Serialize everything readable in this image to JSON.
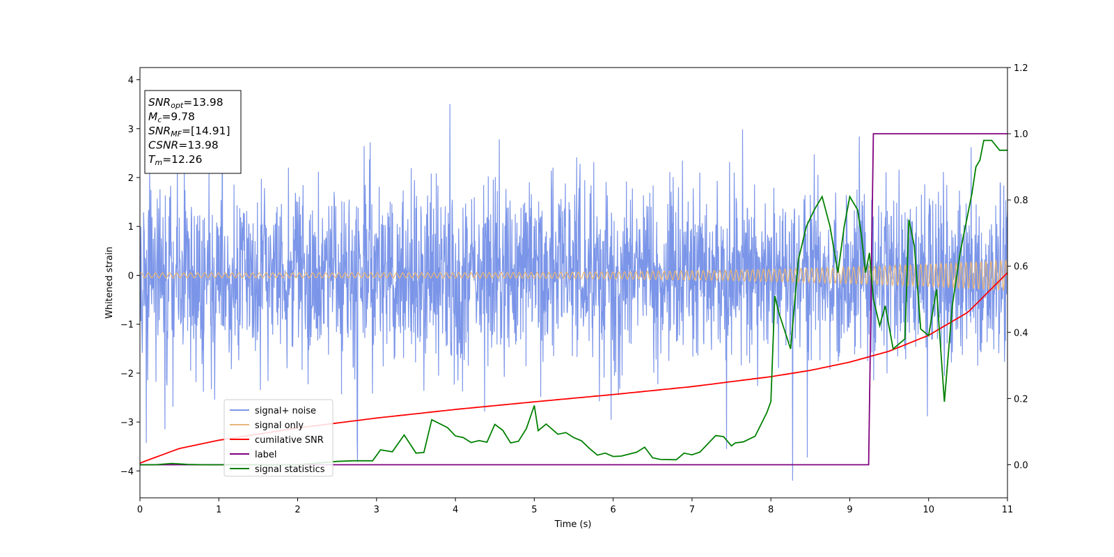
{
  "chart_data": {
    "type": "line",
    "xlabel": "Time (s)",
    "ylabel": "Whitened strain",
    "xlim": [
      0,
      11
    ],
    "ylim_left": [
      -4.55,
      4.25
    ],
    "ylim_right": [
      -0.1,
      1.2
    ],
    "x_ticks": [
      "0",
      "1",
      "2",
      "3",
      "4",
      "5",
      "6",
      "7",
      "8",
      "9",
      "10",
      "11"
    ],
    "y_left_ticks": [
      "4",
      "3",
      "2",
      "1",
      "0",
      "−1",
      "−2",
      "−3",
      "−4"
    ],
    "y_right_ticks": [
      "1.2",
      "1.0",
      "0.8",
      "0.6",
      "0.4",
      "0.2",
      "0.0"
    ],
    "grid": false,
    "legend_position": "lower-left",
    "annotation": [
      {
        "main": "SNR",
        "sub": "opt",
        "rest": "=13.98"
      },
      {
        "main": "M",
        "sub": "c",
        "rest": "=9.78"
      },
      {
        "main": "SNR",
        "sub": "MF",
        "rest": "=[14.91]"
      },
      {
        "main": "CSNR",
        "sub": "",
        "rest": "=13.98"
      },
      {
        "main": "T",
        "sub": "m",
        "rest": "=12.26"
      }
    ],
    "series": [
      {
        "name": "signal+ noise",
        "axis": "left",
        "color": "#7b95e8",
        "description": "dense whitened noise, std ~0.9, spikes to about +3.8 and -4.2",
        "noise_std": 0.9
      },
      {
        "name": "signal only",
        "axis": "left",
        "color": "#e8b67a",
        "description": "chirp oscillation",
        "amplitude_start": 0.05,
        "amplitude_end": 0.32
      },
      {
        "name": "cumilative SNR",
        "axis": "right",
        "color": "#ff0000",
        "x": [
          0,
          0.5,
          1,
          2,
          3,
          4,
          5,
          6,
          7,
          8,
          8.5,
          9,
          9.5,
          10,
          10.5,
          11
        ],
        "y": [
          0.005,
          0.049,
          0.074,
          0.111,
          0.141,
          0.167,
          0.19,
          0.212,
          0.236,
          0.266,
          0.285,
          0.31,
          0.343,
          0.391,
          0.461,
          0.58
        ]
      },
      {
        "name": "label",
        "axis": "right",
        "color": "#800080",
        "x": [
          0,
          9.24,
          9.3,
          11
        ],
        "y": [
          0,
          0,
          1,
          1
        ]
      },
      {
        "name": "signal statistics",
        "axis": "right",
        "color": "#008000",
        "x": [
          0,
          0.2,
          0.4,
          0.6,
          0.8,
          1,
          1.5,
          2,
          2.5,
          2.7,
          2.95,
          3.05,
          3.2,
          3.35,
          3.5,
          3.6,
          3.7,
          3.9,
          4,
          4.1,
          4.2,
          4.3,
          4.4,
          4.5,
          4.6,
          4.7,
          4.8,
          4.9,
          5,
          5.05,
          5.15,
          5.3,
          5.4,
          5.5,
          5.6,
          5.7,
          5.8,
          5.9,
          6,
          6.1,
          6.3,
          6.4,
          6.5,
          6.6,
          6.8,
          6.9,
          7,
          7.1,
          7.3,
          7.4,
          7.5,
          7.55,
          7.65,
          7.8,
          7.95,
          8.0,
          8.05,
          8.1,
          8.25,
          8.35,
          8.45,
          8.55,
          8.65,
          8.75,
          8.85,
          8.93,
          9.0,
          9.1,
          9.15,
          9.2,
          9.25,
          9.3,
          9.38,
          9.45,
          9.55,
          9.7,
          9.75,
          9.82,
          9.9,
          10.0,
          10.1,
          10.2,
          10.3,
          10.4,
          10.55,
          10.6,
          10.65,
          10.7,
          10.8,
          10.9,
          11
        ],
        "y": [
          0.0,
          0.0,
          0.004,
          0.001,
          0.0,
          0.0,
          0.0,
          0.0,
          0.01,
          0.012,
          0.012,
          0.045,
          0.039,
          0.09,
          0.035,
          0.037,
          0.136,
          0.112,
          0.087,
          0.082,
          0.067,
          0.073,
          0.068,
          0.122,
          0.104,
          0.066,
          0.071,
          0.109,
          0.179,
          0.103,
          0.123,
          0.092,
          0.097,
          0.082,
          0.072,
          0.049,
          0.029,
          0.035,
          0.025,
          0.026,
          0.038,
          0.053,
          0.021,
          0.016,
          0.015,
          0.035,
          0.03,
          0.038,
          0.088,
          0.085,
          0.057,
          0.066,
          0.069,
          0.086,
          0.158,
          0.191,
          0.51,
          0.46,
          0.35,
          0.62,
          0.72,
          0.77,
          0.81,
          0.72,
          0.58,
          0.72,
          0.81,
          0.77,
          0.69,
          0.58,
          0.64,
          0.5,
          0.42,
          0.48,
          0.35,
          0.38,
          0.74,
          0.66,
          0.41,
          0.39,
          0.53,
          0.19,
          0.48,
          0.64,
          0.82,
          0.9,
          0.92,
          0.98,
          0.98,
          0.95,
          0.95
        ]
      }
    ]
  }
}
